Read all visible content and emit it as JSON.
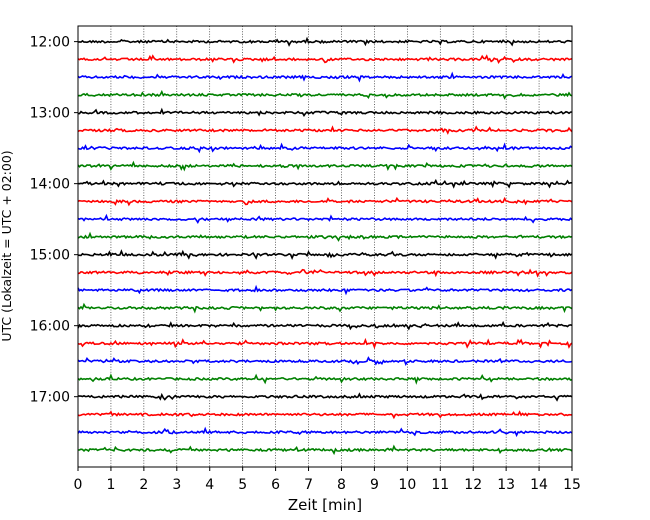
{
  "chart_data": {
    "type": "line",
    "title": "",
    "xlabel": "Zeit  [min]",
    "ylabel": "UTC (Lokalzeit = UTC + 02:00)",
    "xlim": [
      0,
      15
    ],
    "x_ticks": [
      "0",
      "1",
      "2",
      "3",
      "4",
      "5",
      "6",
      "7",
      "8",
      "9",
      "10",
      "11",
      "12",
      "13",
      "14",
      "15"
    ],
    "y_ticks": [
      {
        "label": "12:00",
        "hour": 12.0
      },
      {
        "label": "13:00",
        "hour": 13.0
      },
      {
        "label": "14:00",
        "hour": 14.0
      },
      {
        "label": "15:00",
        "hour": 15.0
      },
      {
        "label": "16:00",
        "hour": 16.0
      },
      {
        "label": "17:00",
        "hour": 17.0
      }
    ],
    "ylim_hours": [
      11.78,
      17.99
    ],
    "grid": "vertical dotted at every minute",
    "trace_colors": [
      "#000000",
      "#ff0000",
      "#0000ff",
      "#008000"
    ],
    "traces": [
      {
        "start": "12:00",
        "color": "#000000"
      },
      {
        "start": "12:15",
        "color": "#ff0000"
      },
      {
        "start": "12:30",
        "color": "#0000ff"
      },
      {
        "start": "12:45",
        "color": "#008000"
      },
      {
        "start": "13:00",
        "color": "#000000"
      },
      {
        "start": "13:15",
        "color": "#ff0000"
      },
      {
        "start": "13:30",
        "color": "#0000ff"
      },
      {
        "start": "13:45",
        "color": "#008000"
      },
      {
        "start": "14:00",
        "color": "#000000"
      },
      {
        "start": "14:15",
        "color": "#ff0000"
      },
      {
        "start": "14:30",
        "color": "#0000ff"
      },
      {
        "start": "14:45",
        "color": "#008000"
      },
      {
        "start": "15:00",
        "color": "#000000"
      },
      {
        "start": "15:15",
        "color": "#ff0000"
      },
      {
        "start": "15:30",
        "color": "#0000ff"
      },
      {
        "start": "15:45",
        "color": "#008000"
      },
      {
        "start": "16:00",
        "color": "#000000"
      },
      {
        "start": "16:15",
        "color": "#ff0000"
      },
      {
        "start": "16:30",
        "color": "#0000ff"
      },
      {
        "start": "16:45",
        "color": "#008000"
      },
      {
        "start": "17:00",
        "color": "#000000"
      },
      {
        "start": "17:15",
        "color": "#ff0000"
      },
      {
        "start": "17:30",
        "color": "#0000ff"
      },
      {
        "start": "17:45",
        "color": "#008000"
      }
    ]
  }
}
